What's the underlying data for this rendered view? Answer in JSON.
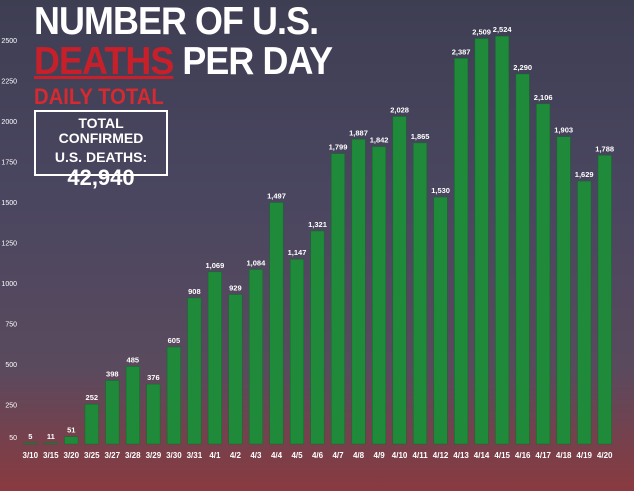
{
  "header": {
    "title_line1": "NUMBER OF U.S.",
    "title_line2_red": "DEATHS",
    "title_line2_white": " PER DAY",
    "subtitle": "DAILY TOTAL"
  },
  "total_box": {
    "label_line1": "TOTAL CONFIRMED",
    "label_line2": "U.S. DEATHS:",
    "value": "42,940"
  },
  "colors": {
    "bar": "#1f8a3a",
    "bar_dark": "#136b2a",
    "text": "#ffffff",
    "accent_red": "#c8202a"
  },
  "chart_data": {
    "type": "bar",
    "categories": [
      "3/10",
      "3/15",
      "3/20",
      "3/25",
      "3/27",
      "3/28",
      "3/29",
      "3/30",
      "3/31",
      "4/1",
      "4/2",
      "4/3",
      "4/4",
      "4/5",
      "4/6",
      "4/7",
      "4/8",
      "4/9",
      "4/10",
      "4/11",
      "4/12",
      "4/13",
      "4/14",
      "4/15",
      "4/16",
      "4/17",
      "4/18",
      "4/19",
      "4/20"
    ],
    "values": [
      5,
      11,
      51,
      252,
      398,
      485,
      376,
      605,
      908,
      1069,
      929,
      1084,
      1497,
      1147,
      1321,
      1799,
      1887,
      1842,
      2028,
      1865,
      1530,
      2387,
      2509,
      2524,
      2290,
      2106,
      1903,
      1629,
      1788
    ],
    "value_labels": [
      "5",
      "11",
      "51",
      "252",
      "398",
      "485",
      "376",
      "605",
      "908",
      "1,069",
      "929",
      "1,084",
      "1,497",
      "1,147",
      "1,321",
      "1,799",
      "1,887",
      "1,842",
      "2,028",
      "1,865",
      "1,530",
      "2,387",
      "2,509",
      "2,524",
      "2,290",
      "2,106",
      "1,903",
      "1,629",
      "1,788"
    ],
    "y_ticks": [
      50,
      250,
      500,
      750,
      1000,
      1250,
      1500,
      1750,
      2000,
      2250,
      2500
    ],
    "ylim": [
      0,
      2600
    ],
    "grid": false,
    "title": "NUMBER OF U.S. DEATHS PER DAY",
    "subtitle": "DAILY TOTAL",
    "xlabel": "",
    "ylabel": ""
  }
}
